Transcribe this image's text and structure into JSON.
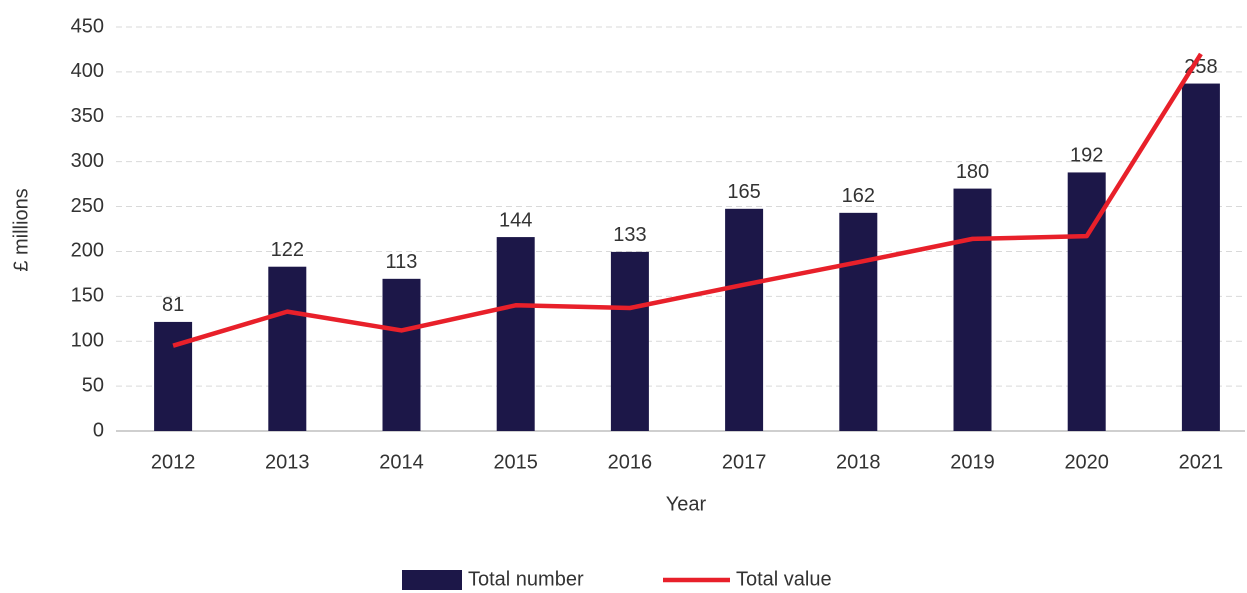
{
  "chart_data": {
    "type": "bar_line",
    "x_label": "Year",
    "y_label": "£ millions",
    "categories": [
      "2012",
      "2013",
      "2014",
      "2015",
      "2016",
      "2017",
      "2018",
      "2019",
      "2020",
      "2021"
    ],
    "series": [
      {
        "name": "Total number",
        "type": "bar",
        "axis": "y2",
        "color": "#1c1748",
        "values": [
          81,
          122,
          113,
          144,
          133,
          165,
          162,
          180,
          192,
          258
        ]
      },
      {
        "name": "Total value",
        "type": "line",
        "axis": "y",
        "color": "#e8202a",
        "values": [
          95,
          133,
          112,
          140,
          137,
          163,
          188,
          214,
          217,
          420
        ]
      }
    ],
    "ylim": [
      0,
      450
    ],
    "yticks": [
      0,
      50,
      100,
      150,
      200,
      250,
      300,
      350,
      400,
      450
    ],
    "y2lim": [
      0,
      300
    ],
    "grid": true,
    "legend": "bottom"
  }
}
